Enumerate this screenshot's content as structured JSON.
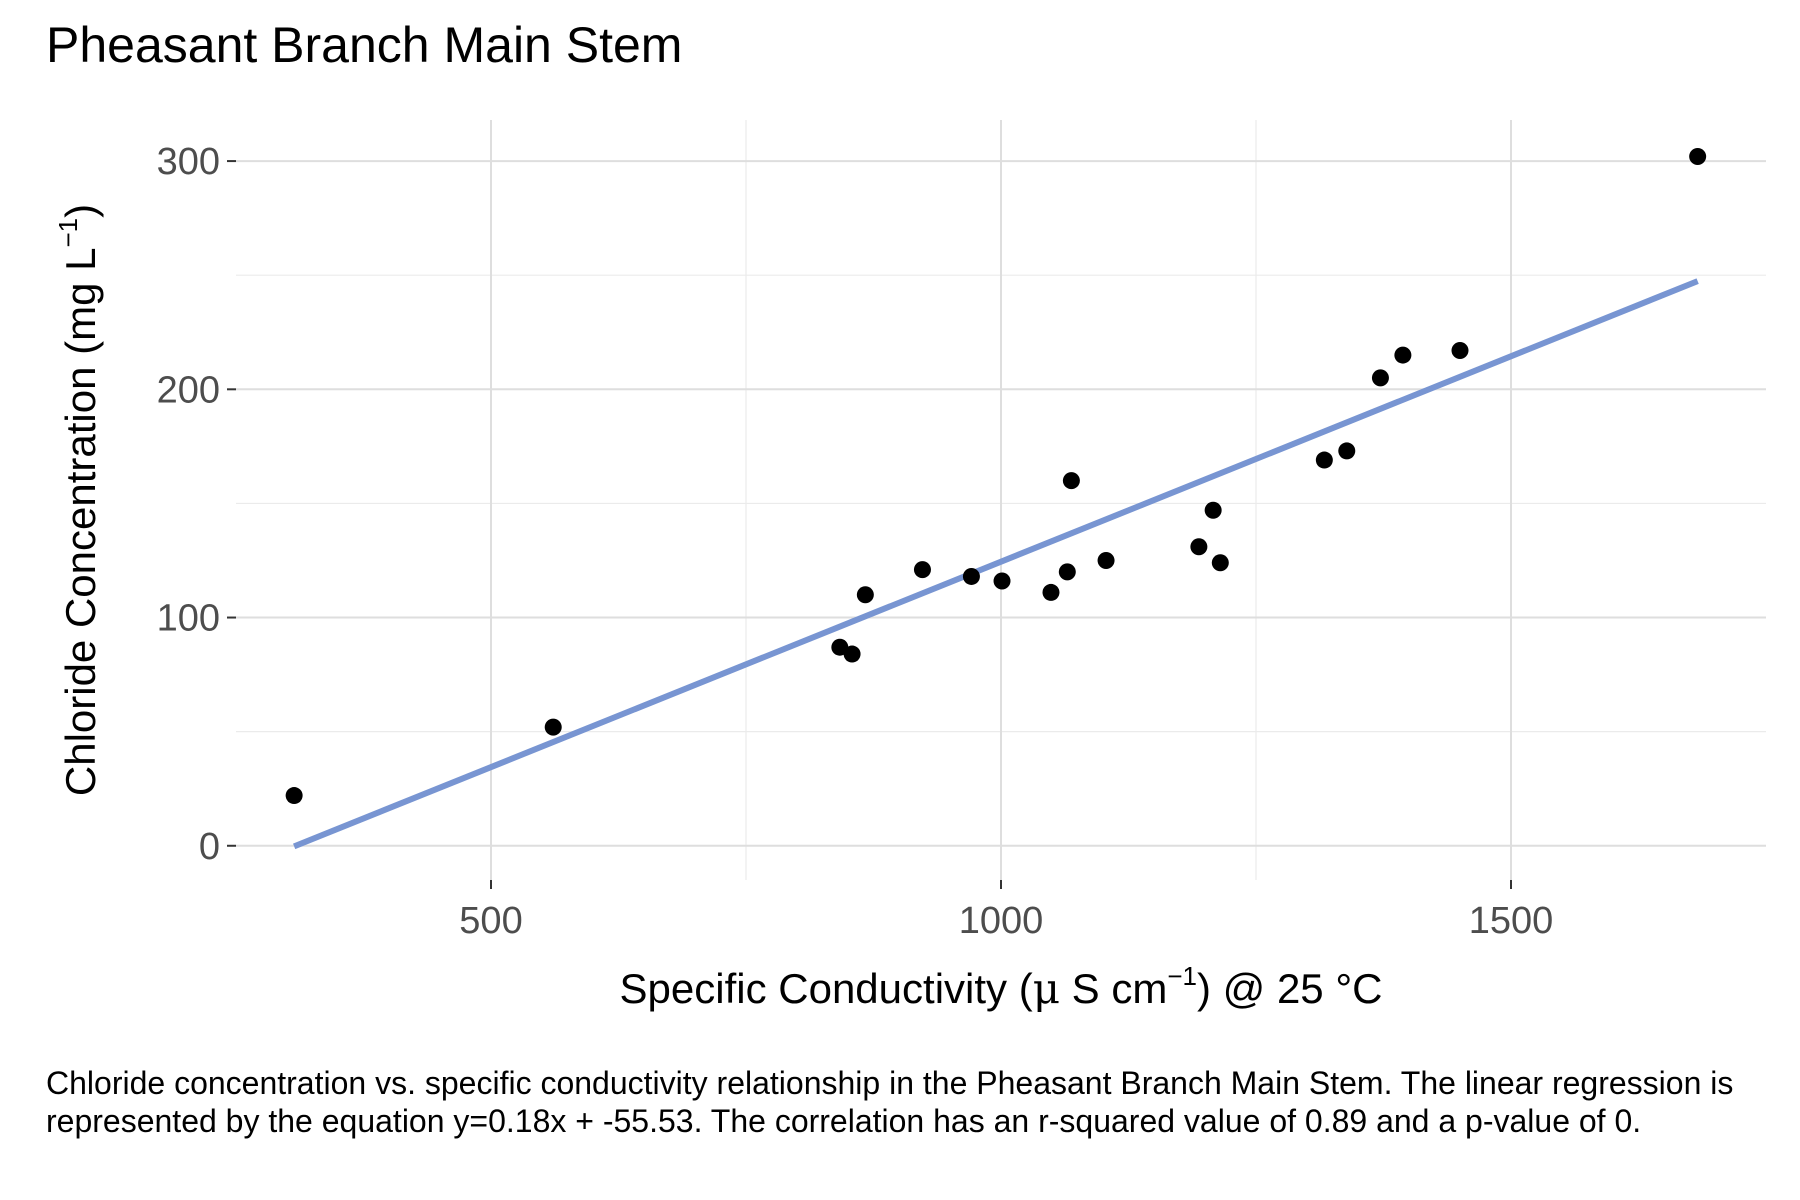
{
  "title": "Pheasant Branch Main Stem",
  "caption": "Chloride concentration vs. specific conductivity relationship in the Pheasant Branch Main Stem. The linear regression is represented by the equation y=0.18x + -55.53. The correlation has an r-squared value of 0.89 and a p-value of 0.",
  "colors": {
    "points": "#000000",
    "regression_line": "#7895d2",
    "grid": "#dedede",
    "tick_labels": "#4d4d4d"
  },
  "chart_data": {
    "type": "scatter",
    "title": "Pheasant Branch Main Stem",
    "xlabel": {
      "pre": "Specific Conductivity (",
      "mu": "μ",
      "mid": " S cm",
      "sup": "−1",
      "post": ") @ 25 °C"
    },
    "ylabel": {
      "pre": "Chloride Concentration (mg L",
      "sup": "−1",
      "post": ")"
    },
    "xlim": [
      250,
      1750
    ],
    "ylim": [
      -15,
      318
    ],
    "x_ticks": [
      500,
      1000,
      1500
    ],
    "x_tick_labels": [
      "500",
      "1000",
      "1500"
    ],
    "y_ticks": [
      0,
      100,
      200,
      300
    ],
    "y_tick_labels": [
      "0",
      "100",
      "200",
      "300"
    ],
    "grid": true,
    "points": [
      {
        "x": 307,
        "y": 22
      },
      {
        "x": 561,
        "y": 52
      },
      {
        "x": 842,
        "y": 87
      },
      {
        "x": 854,
        "y": 84
      },
      {
        "x": 867,
        "y": 110
      },
      {
        "x": 923,
        "y": 121
      },
      {
        "x": 971,
        "y": 118
      },
      {
        "x": 1001,
        "y": 116
      },
      {
        "x": 1049,
        "y": 111
      },
      {
        "x": 1065,
        "y": 120
      },
      {
        "x": 1069,
        "y": 160
      },
      {
        "x": 1103,
        "y": 125
      },
      {
        "x": 1194,
        "y": 131
      },
      {
        "x": 1208,
        "y": 147
      },
      {
        "x": 1215,
        "y": 124
      },
      {
        "x": 1317,
        "y": 169
      },
      {
        "x": 1339,
        "y": 173
      },
      {
        "x": 1372,
        "y": 205
      },
      {
        "x": 1394,
        "y": 215
      },
      {
        "x": 1450,
        "y": 217
      },
      {
        "x": 1683,
        "y": 302
      }
    ],
    "regression": {
      "slope": 0.18,
      "intercept": -55.53,
      "x_range": [
        307,
        1683
      ]
    }
  }
}
